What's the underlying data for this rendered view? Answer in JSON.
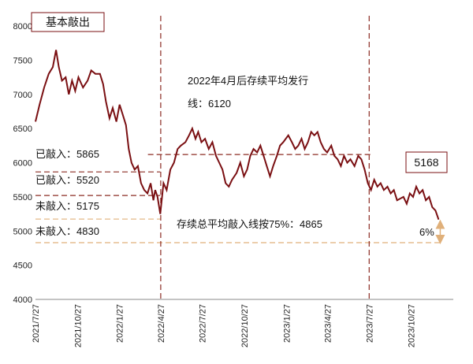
{
  "chart_data": {
    "type": "line",
    "ylim": [
      4000,
      8000
    ],
    "yticks": [
      4000,
      4500,
      5000,
      5500,
      6000,
      6500,
      7000,
      7500,
      8000
    ],
    "xticks": [
      "2021/7/27",
      "2021/10/27",
      "2022/1/27",
      "2022/4/27",
      "2022/7/27",
      "2022/10/27",
      "2023/1/27",
      "2023/4/27",
      "2023/7/27",
      "2023/10/27"
    ],
    "xlim": [
      "2021/7/27",
      "2024/1/27"
    ],
    "grid": false,
    "series": [
      {
        "color": "#7a0f12",
        "points": [
          [
            "2021/7/27",
            6600
          ],
          [
            "2021/8/5",
            6850
          ],
          [
            "2021/8/15",
            7100
          ],
          [
            "2021/8/25",
            7300
          ],
          [
            "2021/9/3",
            7400
          ],
          [
            "2021/9/10",
            7650
          ],
          [
            "2021/9/16",
            7400
          ],
          [
            "2021/9/23",
            7200
          ],
          [
            "2021/10/1",
            7250
          ],
          [
            "2021/10/8",
            7000
          ],
          [
            "2021/10/15",
            7200
          ],
          [
            "2021/10/22",
            7050
          ],
          [
            "2021/10/29",
            7250
          ],
          [
            "2021/11/8",
            7100
          ],
          [
            "2021/11/18",
            7200
          ],
          [
            "2021/11/26",
            7350
          ],
          [
            "2021/12/5",
            7300
          ],
          [
            "2021/12/15",
            7300
          ],
          [
            "2021/12/22",
            7150
          ],
          [
            "2021/12/28",
            6900
          ],
          [
            "2022/1/5",
            6650
          ],
          [
            "2022/1/12",
            6800
          ],
          [
            "2022/1/20",
            6600
          ],
          [
            "2022/1/27",
            6850
          ],
          [
            "2022/2/3",
            6700
          ],
          [
            "2022/2/10",
            6550
          ],
          [
            "2022/2/16",
            6200
          ],
          [
            "2022/2/22",
            6000
          ],
          [
            "2022/3/1",
            5900
          ],
          [
            "2022/3/8",
            5950
          ],
          [
            "2022/3/15",
            5700
          ],
          [
            "2022/3/22",
            5600
          ],
          [
            "2022/3/29",
            5550
          ],
          [
            "2022/4/5",
            5700
          ],
          [
            "2022/4/11",
            5450
          ],
          [
            "2022/4/15",
            5600
          ],
          [
            "2022/4/20",
            5500
          ],
          [
            "2022/4/26",
            5250
          ],
          [
            "2022/5/3",
            5700
          ],
          [
            "2022/5/10",
            5600
          ],
          [
            "2022/5/18",
            5900
          ],
          [
            "2022/5/26",
            6000
          ],
          [
            "2022/6/3",
            6200
          ],
          [
            "2022/6/10",
            6250
          ],
          [
            "2022/6/20",
            6300
          ],
          [
            "2022/6/28",
            6400
          ],
          [
            "2022/7/5",
            6500
          ],
          [
            "2022/7/12",
            6350
          ],
          [
            "2022/7/18",
            6450
          ],
          [
            "2022/7/25",
            6300
          ],
          [
            "2022/8/2",
            6350
          ],
          [
            "2022/8/10",
            6200
          ],
          [
            "2022/8/18",
            6300
          ],
          [
            "2022/8/26",
            6100
          ],
          [
            "2022/9/2",
            6000
          ],
          [
            "2022/9/9",
            5900
          ],
          [
            "2022/9/16",
            5700
          ],
          [
            "2022/9/23",
            5650
          ],
          [
            "2022/9/30",
            5750
          ],
          [
            "2022/10/10",
            5850
          ],
          [
            "2022/10/18",
            6000
          ],
          [
            "2022/10/26",
            5800
          ],
          [
            "2022/11/2",
            5900
          ],
          [
            "2022/11/9",
            6100
          ],
          [
            "2022/11/16",
            6200
          ],
          [
            "2022/11/24",
            6150
          ],
          [
            "2022/12/1",
            6250
          ],
          [
            "2022/12/8",
            6100
          ],
          [
            "2022/12/15",
            5950
          ],
          [
            "2022/12/22",
            5800
          ],
          [
            "2022/12/29",
            5950
          ],
          [
            "2023/1/6",
            6100
          ],
          [
            "2023/1/13",
            6250
          ],
          [
            "2023/1/20",
            6300
          ],
          [
            "2023/1/31",
            6400
          ],
          [
            "2023/2/8",
            6300
          ],
          [
            "2023/2/15",
            6200
          ],
          [
            "2023/2/22",
            6250
          ],
          [
            "2023/3/1",
            6350
          ],
          [
            "2023/3/8",
            6200
          ],
          [
            "2023/3/15",
            6300
          ],
          [
            "2023/3/22",
            6450
          ],
          [
            "2023/3/29",
            6400
          ],
          [
            "2023/4/5",
            6450
          ],
          [
            "2023/4/12",
            6300
          ],
          [
            "2023/4/19",
            6200
          ],
          [
            "2023/4/26",
            6150
          ],
          [
            "2023/5/5",
            6250
          ],
          [
            "2023/5/12",
            6100
          ],
          [
            "2023/5/19",
            6050
          ],
          [
            "2023/5/26",
            5950
          ],
          [
            "2023/6/2",
            6100
          ],
          [
            "2023/6/9",
            6000
          ],
          [
            "2023/6/16",
            6050
          ],
          [
            "2023/6/25",
            5950
          ],
          [
            "2023/7/3",
            6100
          ],
          [
            "2023/7/10",
            6050
          ],
          [
            "2023/7/17",
            5900
          ],
          [
            "2023/7/24",
            5700
          ],
          [
            "2023/7/31",
            5600
          ],
          [
            "2023/8/7",
            5750
          ],
          [
            "2023/8/14",
            5650
          ],
          [
            "2023/8/21",
            5700
          ],
          [
            "2023/8/28",
            5600
          ],
          [
            "2023/9/5",
            5650
          ],
          [
            "2023/9/12",
            5550
          ],
          [
            "2023/9/19",
            5600
          ],
          [
            "2023/9/26",
            5450
          ],
          [
            "2023/10/10",
            5500
          ],
          [
            "2023/10/17",
            5400
          ],
          [
            "2023/10/24",
            5550
          ],
          [
            "2023/10/31",
            5500
          ],
          [
            "2023/11/7",
            5650
          ],
          [
            "2023/11/14",
            5550
          ],
          [
            "2023/11/21",
            5600
          ],
          [
            "2023/11/28",
            5450
          ],
          [
            "2023/12/5",
            5500
          ],
          [
            "2023/12/12",
            5350
          ],
          [
            "2023/12/19",
            5300
          ],
          [
            "2023/12/26",
            5168
          ]
        ]
      }
    ],
    "hlines": [
      {
        "value": 6120,
        "color": "#8b2b22",
        "dash": "dash",
        "from": "2022/3/30",
        "to": "2023/7/30"
      },
      {
        "value": 5865,
        "color": "#8b2b22",
        "dash": "dash",
        "from": "2021/7/27",
        "to": "2022/4/26"
      },
      {
        "value": 5520,
        "color": "#8b2b22",
        "dash": "dash",
        "from": "2021/7/27",
        "to": "2022/4/26"
      },
      {
        "value": 5175,
        "color": "#e0b07a",
        "dash": "dash",
        "from": "2021/7/27",
        "to": "2022/4/26"
      },
      {
        "value": 4830,
        "color": "#e0b07a",
        "dash": "dash",
        "from": "2021/7/27",
        "to": "2024/1/3"
      }
    ],
    "vlines": [
      {
        "date": "2022/4/27",
        "color": "#8b2b22"
      },
      {
        "date": "2023/7/27",
        "color": "#8b2b22"
      }
    ],
    "labels": {
      "peak": "基本敲出",
      "issuance": "2022年4月后存续平均发行线：6120",
      "knocked_in_1": "已敲入：5865",
      "knocked_in_2": "已敲入：5520",
      "not_in_1": "未敲入：5175",
      "not_in_2": "未敲入：4830",
      "avg_knock": "存续总平均敲入线按75%：4865",
      "last_value": "5168",
      "pct": "6%"
    }
  }
}
